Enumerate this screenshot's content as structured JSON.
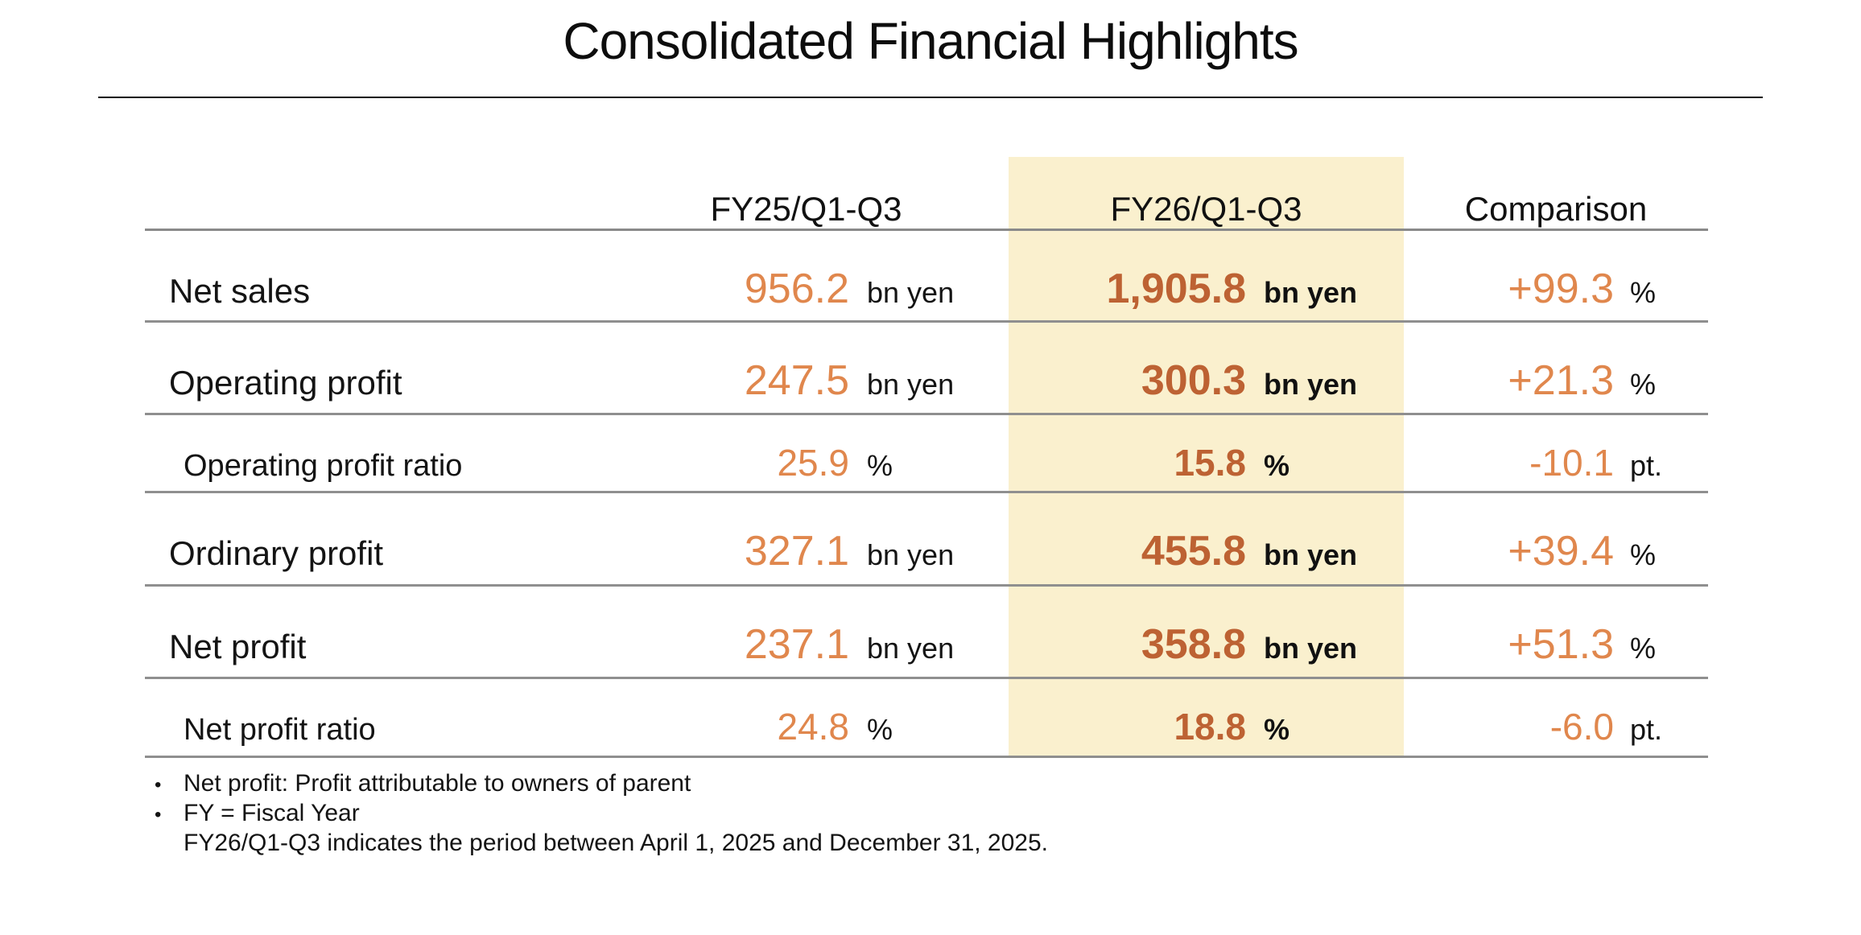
{
  "title": "Consolidated Financial Highlights",
  "table": {
    "headers": {
      "fy25": "FY25/Q1-Q3",
      "fy26": "FY26/Q1-Q3",
      "comparison": "Comparison"
    },
    "rows": [
      {
        "label": "Net sales",
        "fy25": "956.2",
        "fy25_unit": "bn yen",
        "fy26": "1,905.8",
        "fy26_unit": "bn yen",
        "comp": "+99.3",
        "comp_unit": "%"
      },
      {
        "label": "Operating profit",
        "fy25": "247.5",
        "fy25_unit": "bn yen",
        "fy26": "300.3",
        "fy26_unit": "bn yen",
        "comp": "+21.3",
        "comp_unit": "%"
      },
      {
        "label": "Operating profit ratio",
        "fy25": "25.9",
        "fy25_unit": "%",
        "fy26": "15.8",
        "fy26_unit": "%",
        "comp": "-10.1",
        "comp_unit": "pt."
      },
      {
        "label": "Ordinary profit",
        "fy25": "327.1",
        "fy25_unit": "bn yen",
        "fy26": "455.8",
        "fy26_unit": "bn yen",
        "comp": "+39.4",
        "comp_unit": "%"
      },
      {
        "label": "Net profit",
        "fy25": "237.1",
        "fy25_unit": "bn yen",
        "fy26": "358.8",
        "fy26_unit": "bn yen",
        "comp": "+51.3",
        "comp_unit": "%"
      },
      {
        "label": "Net profit ratio",
        "fy25": "24.8",
        "fy25_unit": "%",
        "fy26": "18.8",
        "fy26_unit": "%",
        "comp": "-6.0",
        "comp_unit": "pt."
      }
    ]
  },
  "footnotes": {
    "bullet_glyph": "•",
    "line1": "Net profit: Profit attributable to owners of parent",
    "line2": "FY = Fiscal Year",
    "line3": "FY26/Q1-Q3 indicates the period between April 1, 2025 and December 31, 2025."
  },
  "colors": {
    "accent_orange": "#E0874D",
    "accent_dark_orange": "#BD6233",
    "highlight_background": "#FAF0CE",
    "table_line_gray": "#8F8F8F"
  }
}
